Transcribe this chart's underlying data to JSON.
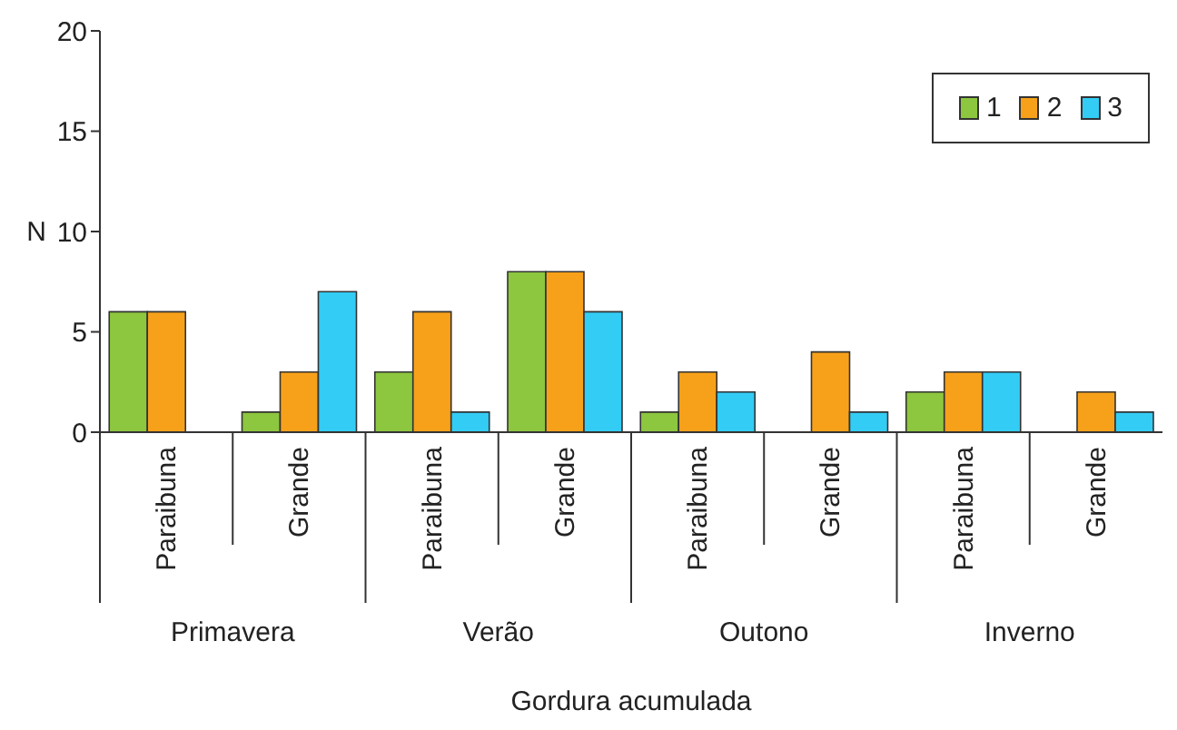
{
  "chart_data": {
    "type": "bar",
    "xlabel": "Gordura acumulada",
    "ylabel": "N",
    "categories": [
      "Paraibuna",
      "Grande",
      "Paraibuna",
      "Grande",
      "Paraibuna",
      "Grande",
      "Paraibuna",
      "Grande"
    ],
    "annotations": [
      "Primavera",
      "Verão",
      "Outono",
      "Inverno"
    ],
    "series": [
      {
        "name": "1",
        "color": "#8dc63f",
        "values": [
          6,
          1,
          3,
          8,
          1,
          0,
          2,
          0
        ]
      },
      {
        "name": "2",
        "color": "#f7a11a",
        "values": [
          6,
          3,
          6,
          8,
          3,
          4,
          3,
          2
        ]
      },
      {
        "name": "3",
        "color": "#33ccf5",
        "values": [
          0,
          7,
          1,
          6,
          2,
          1,
          3,
          1
        ]
      }
    ],
    "ylim": [
      0,
      20
    ],
    "yticks": [
      0,
      5,
      10,
      15,
      20
    ],
    "legend": "top right"
  }
}
